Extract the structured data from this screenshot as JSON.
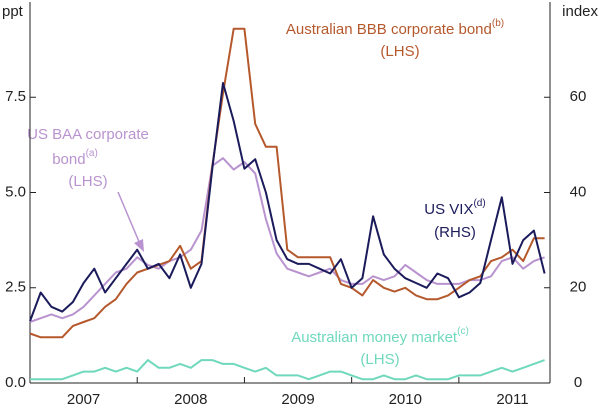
{
  "chart_data": {
    "type": "line",
    "y_label": "ppt",
    "y2_label": "index",
    "x": [
      2007.0,
      2007.1,
      2007.2,
      2007.3,
      2007.4,
      2007.5,
      2007.6,
      2007.7,
      2007.8,
      2007.9,
      2008.0,
      2008.1,
      2008.2,
      2008.3,
      2008.4,
      2008.5,
      2008.6,
      2008.7,
      2008.8,
      2008.9,
      2009.0,
      2009.1,
      2009.2,
      2009.3,
      2009.4,
      2009.5,
      2009.6,
      2009.7,
      2009.8,
      2009.9,
      2010.0,
      2010.1,
      2010.2,
      2010.3,
      2010.4,
      2010.5,
      2010.6,
      2010.7,
      2010.8,
      2010.9,
      2011.0,
      2011.1,
      2011.2,
      2011.3,
      2011.4,
      2011.5,
      2011.6,
      2011.7,
      2011.8
    ],
    "xlim": [
      2007,
      2011.85
    ],
    "xticks": [
      {
        "value": 2007.5,
        "label": "2007"
      },
      {
        "value": 2008.5,
        "label": "2008"
      },
      {
        "value": 2009.5,
        "label": "2009"
      },
      {
        "value": 2010.5,
        "label": "2010"
      },
      {
        "value": 2011.5,
        "label": "2011"
      }
    ],
    "ylim": [
      0,
      10
    ],
    "yticks": [
      {
        "value": 0,
        "label": "0.0"
      },
      2.5,
      {
        "value": 5,
        "label": "5.0"
      },
      7.5
    ],
    "y2lim": [
      0,
      80
    ],
    "y2ticks": [
      0,
      20,
      40,
      60
    ],
    "series": [
      {
        "name": "Australian money market",
        "color": "#6fd8bd",
        "values": [
          0.1,
          0.1,
          0.1,
          0.1,
          0.2,
          0.3,
          0.3,
          0.4,
          0.3,
          0.4,
          0.3,
          0.6,
          0.4,
          0.4,
          0.5,
          0.4,
          0.6,
          0.6,
          0.5,
          0.5,
          0.4,
          0.3,
          0.4,
          0.2,
          0.2,
          0.2,
          0.1,
          0.2,
          0.3,
          0.3,
          0.2,
          0.1,
          0.1,
          0.2,
          0.1,
          0.1,
          0.2,
          0.1,
          0.1,
          0.1,
          0.2,
          0.2,
          0.2,
          0.3,
          0.4,
          0.3,
          0.4,
          0.5,
          0.6
        ]
      },
      {
        "name": "US BAA corporate bond",
        "color": "#b993cf",
        "values": [
          1.6,
          1.7,
          1.8,
          1.7,
          1.8,
          2.0,
          2.3,
          2.6,
          2.9,
          3.0,
          3.3,
          3.1,
          3.0,
          3.2,
          3.3,
          3.5,
          4.0,
          5.7,
          5.9,
          5.6,
          5.8,
          5.5,
          4.3,
          3.4,
          3.0,
          2.9,
          2.8,
          2.9,
          3.0,
          2.7,
          2.6,
          2.6,
          2.8,
          2.7,
          2.8,
          3.1,
          2.9,
          2.7,
          2.6,
          2.6,
          2.6,
          2.7,
          2.7,
          2.8,
          3.2,
          3.3,
          3.0,
          3.2,
          3.3
        ]
      },
      {
        "name": "Australian BBB corporate bond",
        "color": "#b5592d",
        "values": [
          1.3,
          1.2,
          1.2,
          1.2,
          1.5,
          1.6,
          1.7,
          2.0,
          2.2,
          2.6,
          2.9,
          3.0,
          3.1,
          3.2,
          3.6,
          3.0,
          3.2,
          5.7,
          7.6,
          9.3,
          9.3,
          6.8,
          6.2,
          6.2,
          3.5,
          3.3,
          3.3,
          3.3,
          3.3,
          2.6,
          2.5,
          2.3,
          2.7,
          2.5,
          2.4,
          2.5,
          2.3,
          2.2,
          2.2,
          2.3,
          2.5,
          2.7,
          2.8,
          3.2,
          3.3,
          3.5,
          3.2,
          3.8,
          3.8
        ]
      },
      {
        "name": "US VIX",
        "color": "#1b1b5c",
        "axis": "y2",
        "values": [
          13,
          19,
          16,
          15,
          17,
          21,
          24,
          19,
          22,
          25,
          28,
          24,
          25,
          22,
          27,
          20,
          25,
          45,
          63,
          55,
          45,
          47,
          40,
          30,
          26,
          25,
          25,
          24,
          23,
          26,
          20,
          22,
          35,
          27,
          24,
          22,
          21,
          20,
          23,
          22,
          18,
          19,
          21,
          30,
          39,
          25,
          30,
          32,
          23
        ]
      }
    ],
    "annotations": [
      {
        "text": "Australian BBB corporate bond",
        "sup": "(b)",
        "note": "(LHS)"
      },
      {
        "text": "US BAA corporate",
        "text2": "bond",
        "sup": "(a)",
        "note": "(LHS)"
      },
      {
        "text": "US VIX",
        "sup": "(d)",
        "note": "(RHS)"
      },
      {
        "text": "Australian money market",
        "sup": "(c)",
        "note": "(LHS)"
      }
    ]
  }
}
